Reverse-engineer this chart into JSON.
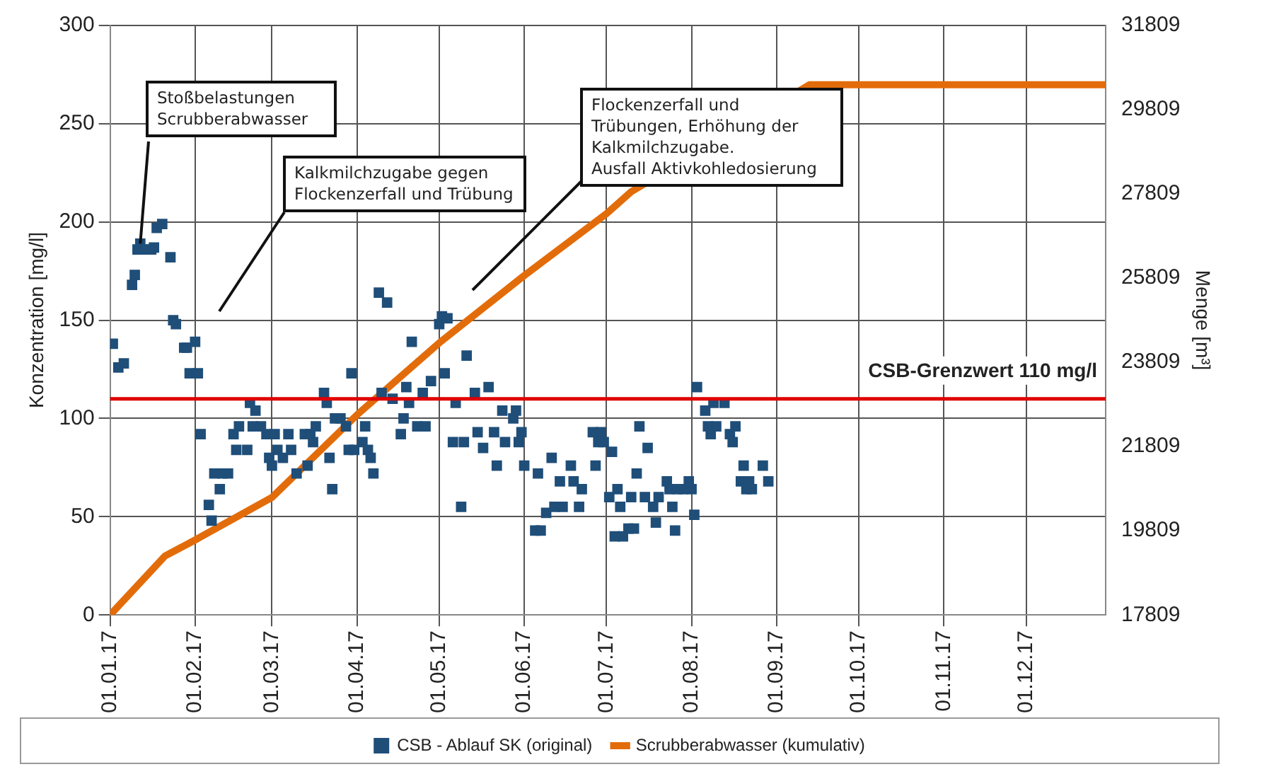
{
  "chart_data": {
    "type": "scatter",
    "ylabel": "Konzentration [mg/l]",
    "y2label": "Menge [m³]",
    "xlim": [
      "2017-01-01",
      "2017-12-30"
    ],
    "xticks": [
      {
        "value": "2017-01-01",
        "label": "01.01.17"
      },
      {
        "value": "2017-02-01",
        "label": "01.02.17"
      },
      {
        "value": "2017-03-01",
        "label": "01.03.17"
      },
      {
        "value": "2017-04-01",
        "label": "01.04.17"
      },
      {
        "value": "2017-05-01",
        "label": "01.05.17"
      },
      {
        "value": "2017-06-01",
        "label": "01.06.17"
      },
      {
        "value": "2017-07-01",
        "label": "01.07.17"
      },
      {
        "value": "2017-08-01",
        "label": "01.08.17"
      },
      {
        "value": "2017-09-01",
        "label": "01.09.17"
      },
      {
        "value": "2017-10-01",
        "label": "01.10.17"
      },
      {
        "value": "2017-11-01",
        "label": "01.11.17"
      },
      {
        "value": "2017-12-01",
        "label": "01.12.17"
      }
    ],
    "ylim": [
      0,
      300
    ],
    "yticks": [
      0,
      50,
      100,
      150,
      200,
      250,
      300
    ],
    "y2lim": [
      17809,
      31809
    ],
    "y2ticks": [
      17809,
      19809,
      21809,
      23809,
      25809,
      27809,
      29809,
      31809
    ],
    "grid": true,
    "legend": "bottom",
    "marker": "square",
    "ref_lines": [
      {
        "axis": "y",
        "value": 110,
        "label": "CSB-Grenzwert 110 mg/l",
        "color": "#e00000"
      }
    ],
    "annotations": [
      {
        "text": "Stoßbelastungen\nScrubberabwasser",
        "x": "2017-01-12",
        "y": 189
      },
      "Kalkmilchzugabe gegen\nFlockenzerfall und Trübung",
      "Flockenzerfall und\nTrübungen, Erhöhung der\nKalkmilchzugabe.\nAusfall Aktivkohledosierung"
    ],
    "series": [
      {
        "name": "CSB - Ablauf SK (original)",
        "color": "#1f4e79",
        "x": [
          "2017-01-02",
          "2017-01-04",
          "2017-01-06",
          "2017-01-09",
          "2017-01-10",
          "2017-01-11",
          "2017-01-12",
          "2017-01-14",
          "2017-01-16",
          "2017-01-17",
          "2017-01-18",
          "2017-01-20",
          "2017-01-23",
          "2017-01-24",
          "2017-01-25",
          "2017-01-28",
          "2017-01-29",
          "2017-02-01",
          "2017-01-30",
          "2017-02-02",
          "2017-02-03",
          "2017-02-06",
          "2017-02-07",
          "2017-02-10",
          "2017-02-08",
          "2017-02-11",
          "2017-02-13",
          "2017-02-15",
          "2017-02-17",
          "2017-02-16",
          "2017-02-20",
          "2017-02-21",
          "2017-02-23",
          "2017-02-22",
          "2017-02-25",
          "2017-02-27",
          "2017-03-02",
          "2017-02-28",
          "2017-03-01",
          "2017-03-03",
          "2017-03-05",
          "2017-03-07",
          "2017-03-08",
          "2017-03-10",
          "2017-03-13",
          "2017-03-15",
          "2017-03-17",
          "2017-03-14",
          "2017-03-16",
          "2017-03-20",
          "2017-03-21",
          "2017-03-22",
          "2017-03-23",
          "2017-03-24",
          "2017-03-26",
          "2017-03-28",
          "2017-03-30",
          "2017-03-29",
          "2017-03-31",
          "2017-04-03",
          "2017-04-04",
          "2017-04-05",
          "2017-04-06",
          "2017-04-07",
          "2017-04-09",
          "2017-04-12",
          "2017-04-10",
          "2017-04-14",
          "2017-04-17",
          "2017-04-18",
          "2017-04-20",
          "2017-04-21",
          "2017-04-19",
          "2017-04-23",
          "2017-04-26",
          "2017-04-25",
          "2017-04-28",
          "2017-05-01",
          "2017-05-02",
          "2017-05-04",
          "2017-05-03",
          "2017-05-11",
          "2017-05-07",
          "2017-05-14",
          "2017-05-19",
          "2017-05-24",
          "2017-05-29",
          "2017-05-28",
          "2017-05-06",
          "2017-05-10",
          "2017-05-15",
          "2017-05-17",
          "2017-05-21",
          "2017-05-25",
          "2017-05-31",
          "2017-05-30",
          "2017-05-22",
          "2017-06-01",
          "2017-06-06",
          "2017-05-09",
          "2017-06-11",
          "2017-06-14",
          "2017-06-18",
          "2017-06-19",
          "2017-06-22",
          "2017-06-21",
          "2017-06-09",
          "2017-06-12",
          "2017-06-15",
          "2017-06-05",
          "2017-06-07",
          "2017-06-26",
          "2017-06-29",
          "2017-06-28",
          "2017-06-30",
          "2017-07-03",
          "2017-06-27",
          "2017-07-13",
          "2017-07-16",
          "2017-07-12",
          "2017-07-05",
          "2017-07-02",
          "2017-07-06",
          "2017-07-10",
          "2017-07-04",
          "2017-07-07",
          "2017-07-09",
          "2017-07-11",
          "2017-07-15",
          "2017-07-20",
          "2017-07-18",
          "2017-07-19",
          "2017-07-23",
          "2017-07-24",
          "2017-07-27",
          "2017-07-29",
          "2017-08-01",
          "2017-07-25",
          "2017-07-26",
          "2017-07-31",
          "2017-08-02",
          "2017-08-03",
          "2017-08-06",
          "2017-08-09",
          "2017-08-13",
          "2017-08-07",
          "2017-08-10",
          "2017-08-08",
          "2017-08-15",
          "2017-08-17",
          "2017-08-16",
          "2017-08-20",
          "2017-08-27",
          "2017-08-19",
          "2017-08-22",
          "2017-08-23",
          "2017-08-21",
          "2017-08-29"
        ],
        "values": [
          138,
          126,
          128,
          168,
          173,
          186,
          189,
          186,
          186,
          187,
          197,
          199,
          182,
          150,
          148,
          136,
          136,
          139,
          123,
          123,
          92,
          56,
          48,
          64,
          72,
          72,
          72,
          92,
          96,
          84,
          84,
          108,
          104,
          96,
          96,
          92,
          92,
          80,
          76,
          84,
          80,
          92,
          84,
          72,
          92,
          92,
          96,
          76,
          88,
          113,
          108,
          80,
          64,
          100,
          100,
          96,
          123,
          84,
          84,
          88,
          96,
          84,
          80,
          72,
          164,
          159,
          113,
          110,
          92,
          100,
          108,
          139,
          116,
          96,
          96,
          113,
          119,
          148,
          152,
          151,
          123,
          132,
          108,
          113,
          116,
          104,
          104,
          100,
          88,
          88,
          93,
          85,
          93,
          88,
          93,
          88,
          76,
          76,
          72,
          55,
          80,
          68,
          76,
          68,
          64,
          55,
          52,
          55,
          55,
          43,
          43,
          93,
          93,
          88,
          88,
          83,
          76,
          96,
          85,
          72,
          64,
          60,
          55,
          60,
          40,
          40,
          44,
          44,
          60,
          60,
          55,
          47,
          68,
          64,
          64,
          64,
          64,
          55,
          43,
          68,
          51,
          116,
          104,
          108,
          108,
          96,
          96,
          92,
          92,
          96,
          88,
          76,
          76,
          68,
          68,
          64,
          64,
          68
        ]
      },
      {
        "name": "Scrubberabwasser (kumulativ)",
        "type": "line",
        "axis": "y2",
        "color": "#e36c0a",
        "marker": "none",
        "x": [
          "2017-01-01",
          "2017-01-21",
          "2017-02-01",
          "2017-03-01",
          "2017-04-01",
          "2017-05-01",
          "2017-06-01",
          "2017-07-01",
          "2017-07-10",
          "2017-09-13",
          "2017-12-30"
        ],
        "values": [
          17809,
          19210,
          19590,
          20600,
          22560,
          24270,
          25870,
          27340,
          27860,
          30400,
          30400
        ]
      }
    ]
  }
}
